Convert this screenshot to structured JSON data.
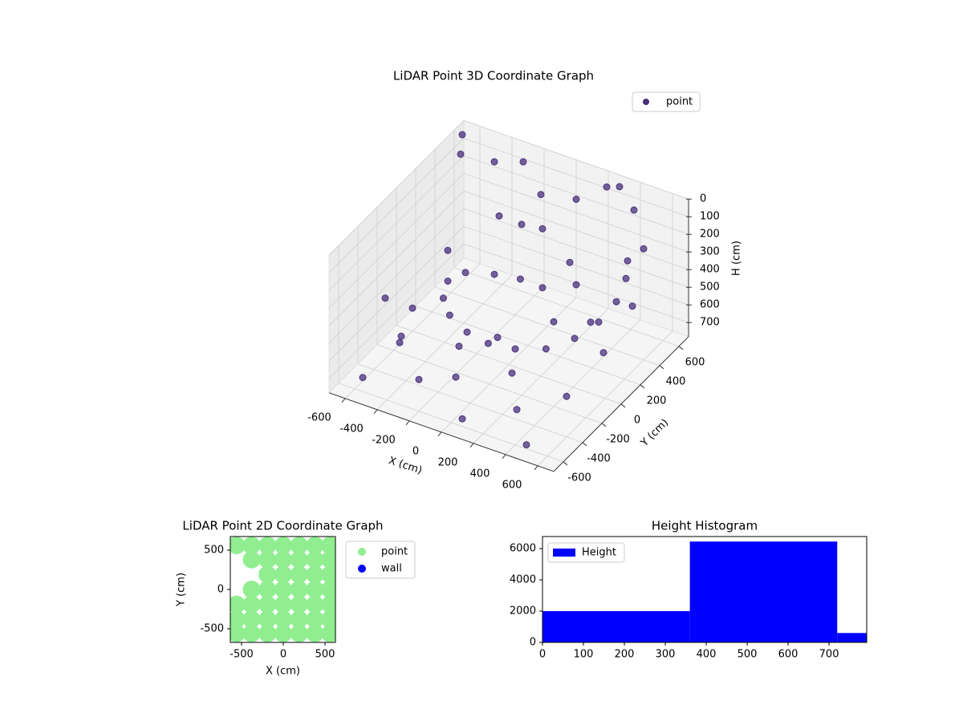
{
  "chart_data": [
    {
      "type": "scatter3d",
      "title": "LiDAR Point 3D Coordinate Graph",
      "xlabel": "X (cm)",
      "ylabel": "Y (cm)",
      "zlabel": "H (cm)",
      "xlim": [
        -700,
        700
      ],
      "ylim": [
        -700,
        700
      ],
      "zlim": [
        0,
        780
      ],
      "z_inverted": true,
      "xticks": [
        -600,
        -400,
        -200,
        0,
        200,
        400,
        600
      ],
      "yticks": [
        -600,
        -400,
        -200,
        0,
        200,
        400,
        600
      ],
      "zticks": [
        0,
        100,
        200,
        300,
        400,
        500,
        600,
        700
      ],
      "grid": true,
      "legend": "upper right",
      "series": [
        {
          "name": "point",
          "color": "#472d7b",
          "x": [
            500,
            550,
            580,
            560,
            500,
            400,
            250,
            100,
            -50,
            -200,
            -300,
            -350,
            -300,
            -150,
            0,
            150,
            300,
            200,
            0,
            -100,
            -600,
            -450,
            -300,
            -500,
            -650,
            300,
            450,
            600,
            650,
            -200,
            100,
            350,
            -550,
            -400,
            0,
            200,
            500,
            -100,
            -600,
            600,
            400,
            -300,
            250,
            -500,
            650,
            -250,
            50,
            450,
            -650,
            150
          ],
          "y": [
            400,
            300,
            150,
            0,
            -150,
            -280,
            -350,
            -380,
            -350,
            -280,
            -180,
            -50,
            50,
            100,
            120,
            100,
            200,
            300,
            350,
            300,
            500,
            600,
            650,
            200,
            -200,
            650,
            550,
            400,
            -100,
            -600,
            -650,
            -500,
            -600,
            -450,
            -550,
            -300,
            -650,
            500,
            0,
            -400,
            -200,
            400,
            600,
            -300,
            200,
            -100,
            -200,
            100,
            600,
            450
          ],
          "z": [
            250,
            280,
            320,
            360,
            390,
            410,
            420,
            420,
            420,
            410,
            400,
            390,
            380,
            370,
            360,
            350,
            340,
            300,
            200,
            180,
            50,
            100,
            80,
            400,
            500,
            30,
            60,
            150,
            450,
            600,
            700,
            650,
            700,
            500,
            550,
            600,
            720,
            120,
            650,
            550,
            300,
            250,
            20,
            650,
            350,
            700,
            500,
            450,
            10,
            40
          ]
        }
      ]
    },
    {
      "type": "scatter",
      "title": "LiDAR Point 2D Coordinate Graph",
      "xlabel": "X (cm)",
      "ylabel": "Y (cm)",
      "xlim": [
        -635,
        625
      ],
      "ylim": [
        -673,
        673
      ],
      "xticks": [
        -500,
        0,
        500
      ],
      "yticks": [
        -500,
        0,
        500
      ],
      "legend": "outside right",
      "series": [
        {
          "name": "point",
          "color": "#90ee90",
          "x": [
            -560,
            -380,
            -190,
            0,
            190,
            380,
            560,
            -380,
            -190,
            0,
            190,
            380,
            560,
            -190,
            0,
            190,
            380,
            560,
            -380,
            -190,
            0,
            190,
            380,
            560,
            -560,
            -380,
            -190,
            0,
            190,
            380,
            560,
            -560,
            -380,
            -190,
            0,
            190,
            380,
            560,
            -560,
            -380,
            -190,
            0,
            190,
            380,
            560
          ],
          "y": [
            560,
            560,
            560,
            560,
            560,
            560,
            560,
            380,
            380,
            380,
            380,
            380,
            380,
            190,
            190,
            190,
            190,
            190,
            0,
            0,
            0,
            0,
            0,
            0,
            -190,
            -190,
            -190,
            -190,
            -190,
            -190,
            -190,
            -380,
            -380,
            -380,
            -380,
            -380,
            -380,
            -380,
            -560,
            -560,
            -560,
            -560,
            -560,
            -560,
            -560
          ]
        },
        {
          "name": "wall",
          "color": "#0000ff",
          "x": [],
          "y": []
        }
      ]
    },
    {
      "type": "histogram",
      "title": "Height Histogram",
      "bins": [
        0,
        360,
        720,
        792
      ],
      "series": [
        {
          "name": "Height",
          "color": "#0000ff",
          "values": [
            2000,
            6450,
            600
          ]
        }
      ],
      "xlim": [
        0,
        792
      ],
      "ylim": [
        0,
        6770
      ],
      "xticks": [
        0,
        100,
        200,
        300,
        400,
        500,
        600,
        700
      ],
      "yticks": [
        0,
        2000,
        4000,
        6000
      ],
      "legend": "upper left"
    }
  ]
}
